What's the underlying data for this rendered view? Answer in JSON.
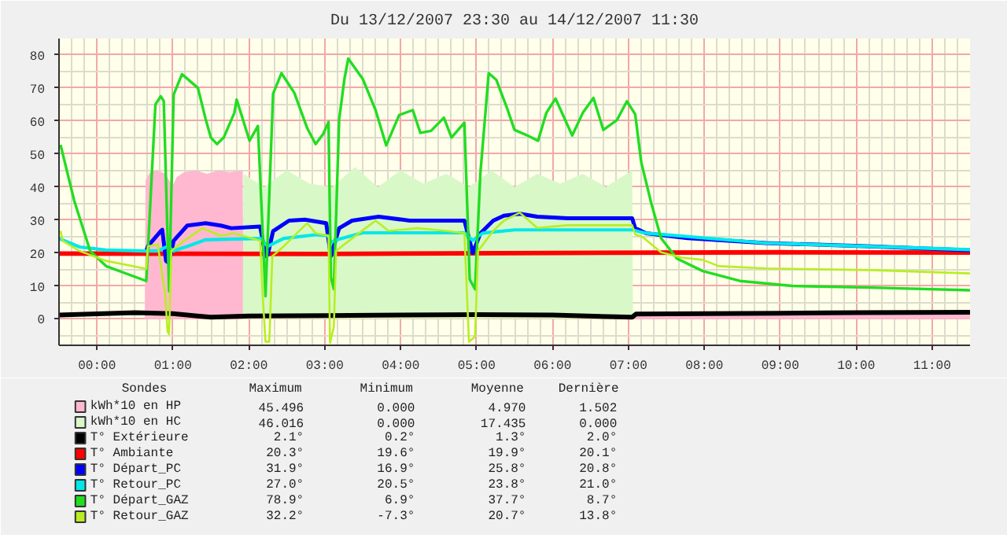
{
  "chart_data": {
    "type": "line",
    "title": "Du 13/12/2007 23:30 au 14/12/2007 11:30",
    "xlim": [
      -0.5,
      11.5
    ],
    "xticks": [
      {
        "value": 0,
        "label": "00:00"
      },
      {
        "value": 1,
        "label": "01:00"
      },
      {
        "value": 2,
        "label": "02:00"
      },
      {
        "value": 3,
        "label": "03:00"
      },
      {
        "value": 4,
        "label": "04:00"
      },
      {
        "value": 5,
        "label": "05:00"
      },
      {
        "value": 6,
        "label": "06:00"
      },
      {
        "value": 7,
        "label": "07:00"
      },
      {
        "value": 8,
        "label": "08:00"
      },
      {
        "value": 9,
        "label": "09:00"
      },
      {
        "value": 10,
        "label": "10:00"
      },
      {
        "value": 11,
        "label": "11:00"
      }
    ],
    "ylim": [
      -8,
      85
    ],
    "yticks": [
      0,
      10,
      20,
      30,
      40,
      50,
      60,
      70,
      80
    ],
    "grid": true,
    "legend": "bottom",
    "series": [
      {
        "name": "kWh*10 en HP",
        "type": "area",
        "color": "#ffb8d0",
        "x": [
          -0.5,
          0.63,
          0.64,
          0.7,
          0.8,
          0.9,
          0.95,
          1.0,
          1.05,
          1.15,
          1.3,
          1.45,
          1.6,
          1.75,
          1.92,
          1.93,
          7.06,
          7.07,
          11.5
        ],
        "values": [
          0,
          0,
          42,
          44.5,
          45,
          44,
          42,
          40.5,
          43,
          44.5,
          45,
          44,
          45,
          44.5,
          45,
          0,
          0,
          1.5,
          1.5
        ]
      },
      {
        "name": "kWh*10 en HC",
        "type": "area",
        "color": "#d8f8c8",
        "x": [
          -0.5,
          1.92,
          1.93,
          2.2,
          2.5,
          2.8,
          3.1,
          3.4,
          3.7,
          4.0,
          4.3,
          4.6,
          4.9,
          5.2,
          5.5,
          5.8,
          6.1,
          6.4,
          6.7,
          7.05,
          7.06,
          11.5
        ],
        "values": [
          0,
          0,
          44,
          40,
          45,
          41,
          40,
          46,
          40,
          45,
          41,
          44,
          40,
          45,
          40,
          44,
          41,
          44,
          40,
          45,
          0,
          0
        ]
      },
      {
        "name": "T° Extérieure",
        "color": "#000000",
        "x": [
          -0.5,
          0.5,
          1.0,
          1.5,
          2.0,
          3.0,
          4.0,
          5.0,
          6.0,
          7.05,
          7.1,
          8.0,
          9.0,
          10.0,
          11.5
        ],
        "values": [
          1.2,
          1.9,
          1.6,
          0.5,
          0.9,
          1.0,
          1.2,
          1.3,
          1.2,
          0.5,
          1.5,
          1.6,
          1.7,
          1.9,
          2.0
        ]
      },
      {
        "name": "T° Ambiante",
        "color": "#ff0000",
        "x": [
          -0.5,
          3.0,
          6.0,
          9.0,
          11.5
        ],
        "values": [
          19.8,
          19.7,
          20.0,
          20.2,
          20.1
        ]
      },
      {
        "name": "T° Départ_PC",
        "color": "#0000ff",
        "x": [
          0.65,
          0.67,
          0.84,
          0.86,
          0.91,
          0.95,
          1.01,
          1.19,
          1.43,
          1.63,
          1.77,
          2.15,
          2.22,
          2.25,
          2.32,
          2.53,
          2.74,
          3.02,
          3.08,
          3.19,
          3.36,
          3.71,
          4.12,
          4.84,
          4.95,
          5.05,
          5.22,
          5.36,
          5.57,
          5.8,
          6.2,
          7.05,
          7.09,
          7.23,
          7.78,
          8.81,
          10.2,
          11.5
        ],
        "values": [
          20.6,
          22,
          26.6,
          27,
          17.6,
          16.9,
          23.7,
          28.3,
          29,
          28.3,
          27.5,
          28,
          19,
          19.5,
          26.6,
          29.8,
          30.1,
          29,
          19,
          27.5,
          29.8,
          31,
          29.8,
          29.8,
          20,
          25.9,
          29.8,
          31.3,
          31.9,
          31,
          30.5,
          30.5,
          27.5,
          26,
          24.5,
          23,
          22,
          20.8
        ]
      },
      {
        "name": "T° Retour_PC",
        "color": "#00e8e8",
        "x": [
          -0.5,
          -0.23,
          0.12,
          0.65,
          0.8,
          0.93,
          1.01,
          1.19,
          1.43,
          2.15,
          2.25,
          2.46,
          2.88,
          3.05,
          3.08,
          3.19,
          3.5,
          4.84,
          4.95,
          5.08,
          5.5,
          7.05,
          7.23,
          8.81,
          11.5
        ],
        "values": [
          24.4,
          21.8,
          20.9,
          20.6,
          20.6,
          22,
          20.6,
          22,
          24,
          24.4,
          22,
          24.4,
          25.5,
          25.2,
          23.2,
          24.2,
          26.1,
          26.1,
          23.8,
          26,
          27,
          27,
          26,
          23,
          21.0
        ]
      },
      {
        "name": "T° Départ_GAZ",
        "color": "#22dd22",
        "x": [
          -0.48,
          -0.3,
          -0.09,
          0.12,
          0.65,
          0.77,
          0.84,
          0.88,
          0.95,
          1.01,
          1.12,
          1.33,
          1.43,
          1.5,
          1.58,
          1.67,
          1.81,
          1.84,
          2.01,
          2.12,
          2.22,
          2.32,
          2.43,
          2.6,
          2.77,
          2.88,
          2.98,
          3.05,
          3.08,
          3.12,
          3.19,
          3.26,
          3.31,
          3.5,
          3.67,
          3.81,
          3.98,
          4.16,
          4.26,
          4.4,
          4.57,
          4.67,
          4.84,
          4.91,
          4.98,
          5.05,
          5.16,
          5.26,
          5.4,
          5.5,
          5.67,
          5.81,
          5.92,
          6.04,
          6.26,
          6.4,
          6.54,
          6.67,
          6.85,
          6.98,
          7.09,
          7.17,
          7.3,
          7.43,
          7.64,
          7.98,
          8.47,
          9.16,
          10.2,
          11.5
        ],
        "values": [
          52.8,
          35.9,
          20.6,
          16,
          11.5,
          65,
          67.5,
          66,
          8.4,
          68,
          74.2,
          70,
          60.7,
          55,
          53,
          55,
          62.5,
          66.5,
          54,
          58.5,
          6.9,
          68.3,
          74.5,
          68.5,
          57.8,
          53,
          56.1,
          59.7,
          12.7,
          9,
          60.5,
          72.8,
          78.9,
          72.8,
          63.3,
          52.6,
          61.8,
          63.3,
          56.4,
          57,
          61,
          55,
          59.5,
          12,
          9,
          44,
          74.5,
          72.5,
          64,
          57.3,
          55.6,
          54,
          62.5,
          66.8,
          55.6,
          62.5,
          67,
          57.3,
          60.3,
          66,
          62,
          47.4,
          35.2,
          24.5,
          18.3,
          14.5,
          11.5,
          10,
          9.5,
          8.7
        ]
      },
      {
        "name": "T° Retour_GAZ",
        "color": "#b8ee22",
        "x": [
          -0.48,
          -0.45,
          -0.23,
          0.12,
          0.65,
          0.67,
          0.8,
          0.9,
          0.93,
          0.95,
          0.98,
          1.15,
          1.39,
          1.63,
          1.8,
          2.15,
          2.18,
          2.22,
          2.27,
          2.31,
          2.46,
          2.7,
          2.77,
          2.88,
          3.05,
          3.07,
          3.12,
          3.15,
          3.36,
          3.67,
          3.84,
          4.22,
          4.6,
          4.84,
          4.9,
          4.98,
          5.02,
          5.22,
          5.36,
          5.57,
          5.8,
          6.2,
          6.64,
          7.05,
          7.09,
          7.19,
          7.43,
          7.7,
          7.98,
          8.19,
          8.81,
          10.2,
          11.5
        ],
        "values": [
          26.7,
          23.6,
          20.6,
          17.6,
          15.2,
          22,
          22.6,
          7.3,
          -3.8,
          -4.6,
          20.6,
          23.7,
          27.5,
          25.2,
          26,
          23.7,
          8.4,
          -6.9,
          -6.9,
          19,
          22,
          27.5,
          29,
          26,
          25.2,
          -7.3,
          -2.4,
          20.6,
          24.4,
          29.8,
          26.7,
          27.5,
          26.7,
          26,
          -6.9,
          -5.4,
          20.6,
          26.7,
          29.8,
          32.2,
          27.6,
          28.4,
          28.4,
          28.4,
          25.6,
          24.8,
          20.2,
          18.6,
          17.9,
          16,
          15.3,
          14.8,
          13.8
        ]
      }
    ],
    "annotations": [
      "Sondes",
      "Maximum",
      "Minimum",
      "Moyenne",
      "Dernière",
      "45.496",
      "0.000",
      "4.970",
      "1.502",
      "46.016",
      "0.000",
      "17.435",
      "0.000",
      "2.1°",
      "0.2°",
      "1.3°",
      "2.0°",
      "20.3°",
      "19.6°",
      "19.9°",
      "20.1°",
      "31.9°",
      "16.9°",
      "25.8°",
      "20.8°",
      "27.0°",
      "20.5°",
      "23.8°",
      "21.0°",
      "78.9°",
      "6.9°",
      "37.7°",
      "8.7°",
      "32.2°",
      "-7.3°",
      "20.7°",
      "13.8°"
    ]
  }
}
